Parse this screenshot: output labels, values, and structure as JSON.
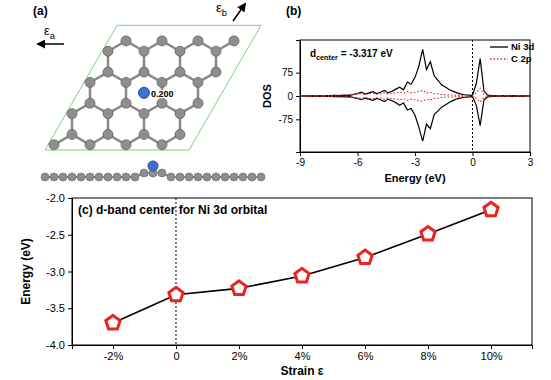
{
  "chart_data": [
    {
      "type": "diagram",
      "title": "(a)",
      "annotations": [
        {
          "text": "ε",
          "subscript": "a"
        },
        {
          "text": "ε",
          "subscript": "b"
        },
        {
          "text": "0.200"
        }
      ]
    },
    {
      "type": "line",
      "title": "(b)",
      "x_label": "Energy (eV)",
      "y_label": "DOS",
      "x": [
        -9,
        -8.8,
        -8.6,
        -8.4,
        -8.2,
        -8,
        -7.8,
        -7.6,
        -7.4,
        -7.2,
        -7,
        -6.8,
        -6.6,
        -6.4,
        -6.2,
        -6,
        -5.8,
        -5.6,
        -5.4,
        -5.2,
        -5,
        -4.8,
        -4.6,
        -4.4,
        -4.2,
        -4,
        -3.8,
        -3.6,
        -3.4,
        -3.2,
        -3,
        -2.8,
        -2.6,
        -2.4,
        -2.2,
        -2,
        -1.8,
        -1.6,
        -1.4,
        -1.2,
        -1,
        -0.8,
        -0.6,
        -0.4,
        -0.2,
        0,
        0.2,
        0.4,
        0.6,
        0.8,
        1,
        1.2,
        1.4,
        1.6,
        1.8,
        2,
        2.2,
        2.4,
        2.6,
        2.8,
        3
      ],
      "xlim": [
        -9,
        3
      ],
      "xticks": [
        -9,
        -6,
        -3,
        0,
        3
      ],
      "ylim": [
        -180,
        180
      ],
      "yticks": [
        -75,
        0,
        75
      ],
      "legend": "top-right",
      "reference_x": 0,
      "annotations": [
        {
          "text": "d",
          "subscript": "center",
          "suffix": "= -3.317 eV"
        }
      ],
      "series": [
        {
          "name": "Ni 3d",
          "color": "#000000",
          "line_style": "solid",
          "values": [
            0,
            0,
            0,
            1,
            0,
            1,
            0,
            1,
            1,
            2,
            1,
            2,
            3,
            2,
            5,
            8,
            12,
            6,
            10,
            14,
            8,
            12,
            18,
            10,
            15,
            22,
            28,
            20,
            45,
            38,
            60,
            95,
            150,
            85,
            110,
            65,
            50,
            35,
            28,
            20,
            15,
            10,
            6,
            4,
            3,
            2,
            40,
            120,
            15,
            3,
            1,
            1,
            0,
            1,
            0,
            1,
            1,
            0,
            1,
            0,
            0
          ],
          "values_down": [
            0,
            0,
            0,
            -1,
            0,
            -1,
            0,
            -1,
            -1,
            -2,
            -1,
            -2,
            -3,
            -2,
            -5,
            -8,
            -12,
            -7,
            -10,
            -14,
            -8,
            -12,
            -18,
            -10,
            -15,
            -22,
            -30,
            -22,
            -45,
            -40,
            -62,
            -100,
            -145,
            -90,
            -105,
            -60,
            -48,
            -35,
            -28,
            -20,
            -14,
            -9,
            -6,
            -4,
            -3,
            -2,
            -30,
            -95,
            -12,
            -3,
            -1,
            -1,
            0,
            -1,
            0,
            -1,
            -1,
            0,
            -1,
            0,
            0
          ]
        },
        {
          "name": "C 2p",
          "color": "#e02020",
          "line_style": "dotted",
          "values": [
            0,
            0,
            0,
            1,
            0,
            1,
            1,
            2,
            1,
            2,
            2,
            3,
            2,
            4,
            5,
            6,
            8,
            5,
            7,
            9,
            6,
            7,
            10,
            6,
            8,
            10,
            12,
            9,
            14,
            10,
            12,
            15,
            18,
            10,
            12,
            8,
            7,
            5,
            4,
            3,
            3,
            2,
            2,
            1,
            1,
            1,
            10,
            25,
            5,
            2,
            1,
            1,
            1,
            2,
            1,
            1,
            2,
            1,
            1,
            1,
            0
          ],
          "values_down": [
            0,
            0,
            0,
            -1,
            0,
            -1,
            -1,
            -2,
            -1,
            -2,
            -2,
            -3,
            -2,
            -4,
            -5,
            -6,
            -8,
            -5,
            -7,
            -9,
            -6,
            -7,
            -10,
            -6,
            -8,
            -10,
            -12,
            -9,
            -14,
            -10,
            -12,
            -15,
            -17,
            -10,
            -12,
            -8,
            -7,
            -5,
            -4,
            -3,
            -3,
            -2,
            -2,
            -1,
            -1,
            -1,
            -8,
            -20,
            -4,
            -2,
            -1,
            -1,
            -1,
            -2,
            -1,
            -1,
            -2,
            -1,
            -1,
            -1,
            0
          ]
        }
      ]
    },
    {
      "type": "line",
      "title": "(c) d-band center for Ni 3d orbital",
      "x_label": "Strain ε",
      "y_label": "Energy (eV)",
      "categories": [
        "-2%",
        "0",
        "2%",
        "4%",
        "6%",
        "8%",
        "10%"
      ],
      "values": [
        -3.7,
        -3.317,
        -3.23,
        -3.06,
        -2.81,
        -2.49,
        -2.16
      ],
      "color": "#e8241c",
      "marker": "pentagon",
      "reference_category": "0",
      "ylim": [
        -4,
        -2
      ],
      "yticks": [
        {
          "value": -4,
          "label": "-4.0"
        },
        {
          "value": -3.5,
          "label": "-3.5"
        },
        {
          "value": -3,
          "label": "-3.0"
        },
        {
          "value": -2.5,
          "label": "-2.5"
        },
        {
          "value": -2,
          "label": "-2.0"
        }
      ]
    }
  ]
}
